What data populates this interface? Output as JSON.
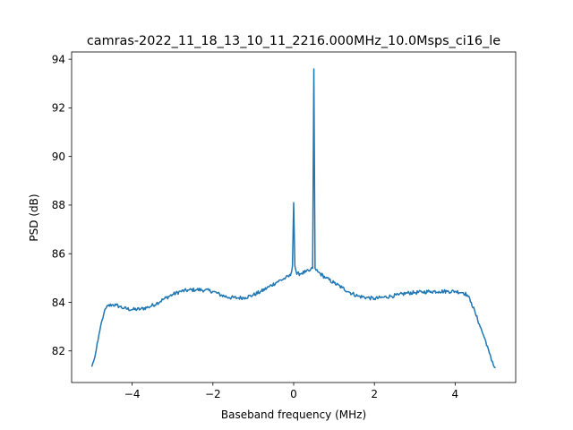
{
  "chart_data": {
    "type": "line",
    "title": "camras-2022_11_18_13_10_11_2216.000MHz_10.0Msps_ci16_le",
    "xlabel": "Baseband frequency (MHz)",
    "ylabel": "PSD (dB)",
    "xlim": [
      -5.5,
      5.5
    ],
    "ylim": [
      80.7,
      94.3
    ],
    "xticks": [
      -4,
      -2,
      0,
      2,
      4
    ],
    "xtick_labels": [
      "−4",
      "−2",
      "0",
      "2",
      "4"
    ],
    "yticks": [
      82,
      84,
      86,
      88,
      90,
      92,
      94
    ],
    "ytick_labels": [
      "82",
      "84",
      "86",
      "88",
      "90",
      "92",
      "94"
    ],
    "grid": false,
    "series": [
      {
        "color": "#1f77b4",
        "x": [
          -5.0,
          -4.95,
          -4.9,
          -4.85,
          -4.8,
          -4.75,
          -4.7,
          -4.65,
          -4.6,
          -4.5,
          -4.4,
          -4.3,
          -4.2,
          -4.0,
          -3.8,
          -3.6,
          -3.4,
          -3.2,
          -3.0,
          -2.8,
          -2.6,
          -2.4,
          -2.2,
          -2.0,
          -1.8,
          -1.6,
          -1.4,
          -1.2,
          -1.0,
          -0.8,
          -0.6,
          -0.4,
          -0.2,
          -0.08,
          -0.03,
          0.0,
          0.03,
          0.08,
          0.2,
          0.3,
          0.4,
          0.47,
          0.5,
          0.53,
          0.6,
          0.8,
          1.0,
          1.2,
          1.4,
          1.6,
          1.8,
          2.0,
          2.2,
          2.4,
          2.6,
          2.8,
          3.0,
          3.2,
          3.4,
          3.6,
          3.8,
          4.0,
          4.2,
          4.3,
          4.4,
          4.5,
          4.6,
          4.7,
          4.8,
          4.85,
          4.9,
          4.95,
          5.0
        ],
        "y": [
          81.35,
          81.6,
          81.95,
          82.4,
          82.85,
          83.25,
          83.55,
          83.75,
          83.85,
          83.9,
          83.88,
          83.82,
          83.75,
          83.7,
          83.72,
          83.8,
          83.95,
          84.15,
          84.32,
          84.45,
          84.5,
          84.52,
          84.5,
          84.45,
          84.3,
          84.2,
          84.18,
          84.2,
          84.3,
          84.45,
          84.65,
          84.85,
          85.0,
          85.1,
          85.5,
          88.1,
          85.5,
          85.15,
          85.2,
          85.25,
          85.3,
          85.4,
          93.6,
          85.4,
          85.25,
          85.0,
          84.8,
          84.6,
          84.4,
          84.25,
          84.2,
          84.15,
          84.2,
          84.25,
          84.3,
          84.38,
          84.4,
          84.42,
          84.45,
          84.45,
          84.45,
          84.45,
          84.4,
          84.3,
          84.0,
          83.55,
          83.1,
          82.65,
          82.2,
          81.9,
          81.6,
          81.4,
          81.3
        ]
      }
    ]
  }
}
